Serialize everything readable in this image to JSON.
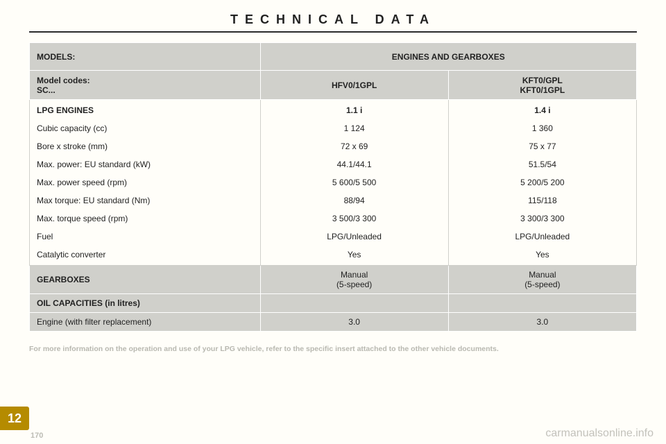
{
  "title": "TECHNICAL DATA",
  "header": {
    "models_label": "MODELS:",
    "engines_label": "ENGINES AND GEARBOXES",
    "model_codes_label": "Model codes:\nSC...",
    "col2": "HFV0/1GPL",
    "col3": "KFT0/GPL\nKFT0/1GPL"
  },
  "rows": [
    {
      "label": "LPG ENGINES",
      "c2": "1.1 i",
      "c3": "1.4 i",
      "bold": true
    },
    {
      "label": "Cubic capacity (cc)",
      "c2": "1 124",
      "c3": "1 360"
    },
    {
      "label": "Bore x stroke (mm)",
      "c2": "72 x 69",
      "c3": "75 x 77"
    },
    {
      "label": "Max. power: EU standard (kW)",
      "c2": "44.1/44.1",
      "c3": "51.5/54"
    },
    {
      "label": "Max. power speed (rpm)",
      "c2": "5 600/5 500",
      "c3": "5 200/5 200"
    },
    {
      "label": "Max torque: EU standard (Nm)",
      "c2": "88/94",
      "c3": "115/118"
    },
    {
      "label": "Max. torque speed (rpm)",
      "c2": "3 500/3 300",
      "c3": "3 300/3 300"
    },
    {
      "label": "Fuel",
      "c2": "LPG/Unleaded",
      "c3": "LPG/Unleaded"
    },
    {
      "label": "Catalytic converter",
      "c2": "Yes",
      "c3": "Yes"
    }
  ],
  "gearboxes": {
    "label": "GEARBOXES",
    "c2": "Manual\n(5-speed)",
    "c3": "Manual\n(5-speed)"
  },
  "oil": {
    "label": "OIL CAPACITIES (in litres)",
    "row": {
      "label": "Engine (with filter replacement)",
      "c2": "3.0",
      "c3": "3.0"
    }
  },
  "footnote": "For more information on the operation and use of your LPG vehicle, refer to the specific insert attached to the other vehicle documents.",
  "badge": "12",
  "pagenum": "170",
  "watermark": "carmanualsonline.info",
  "colors": {
    "grey": "#d0d0cb",
    "gold": "#b58b00",
    "bg": "#fffef9"
  }
}
